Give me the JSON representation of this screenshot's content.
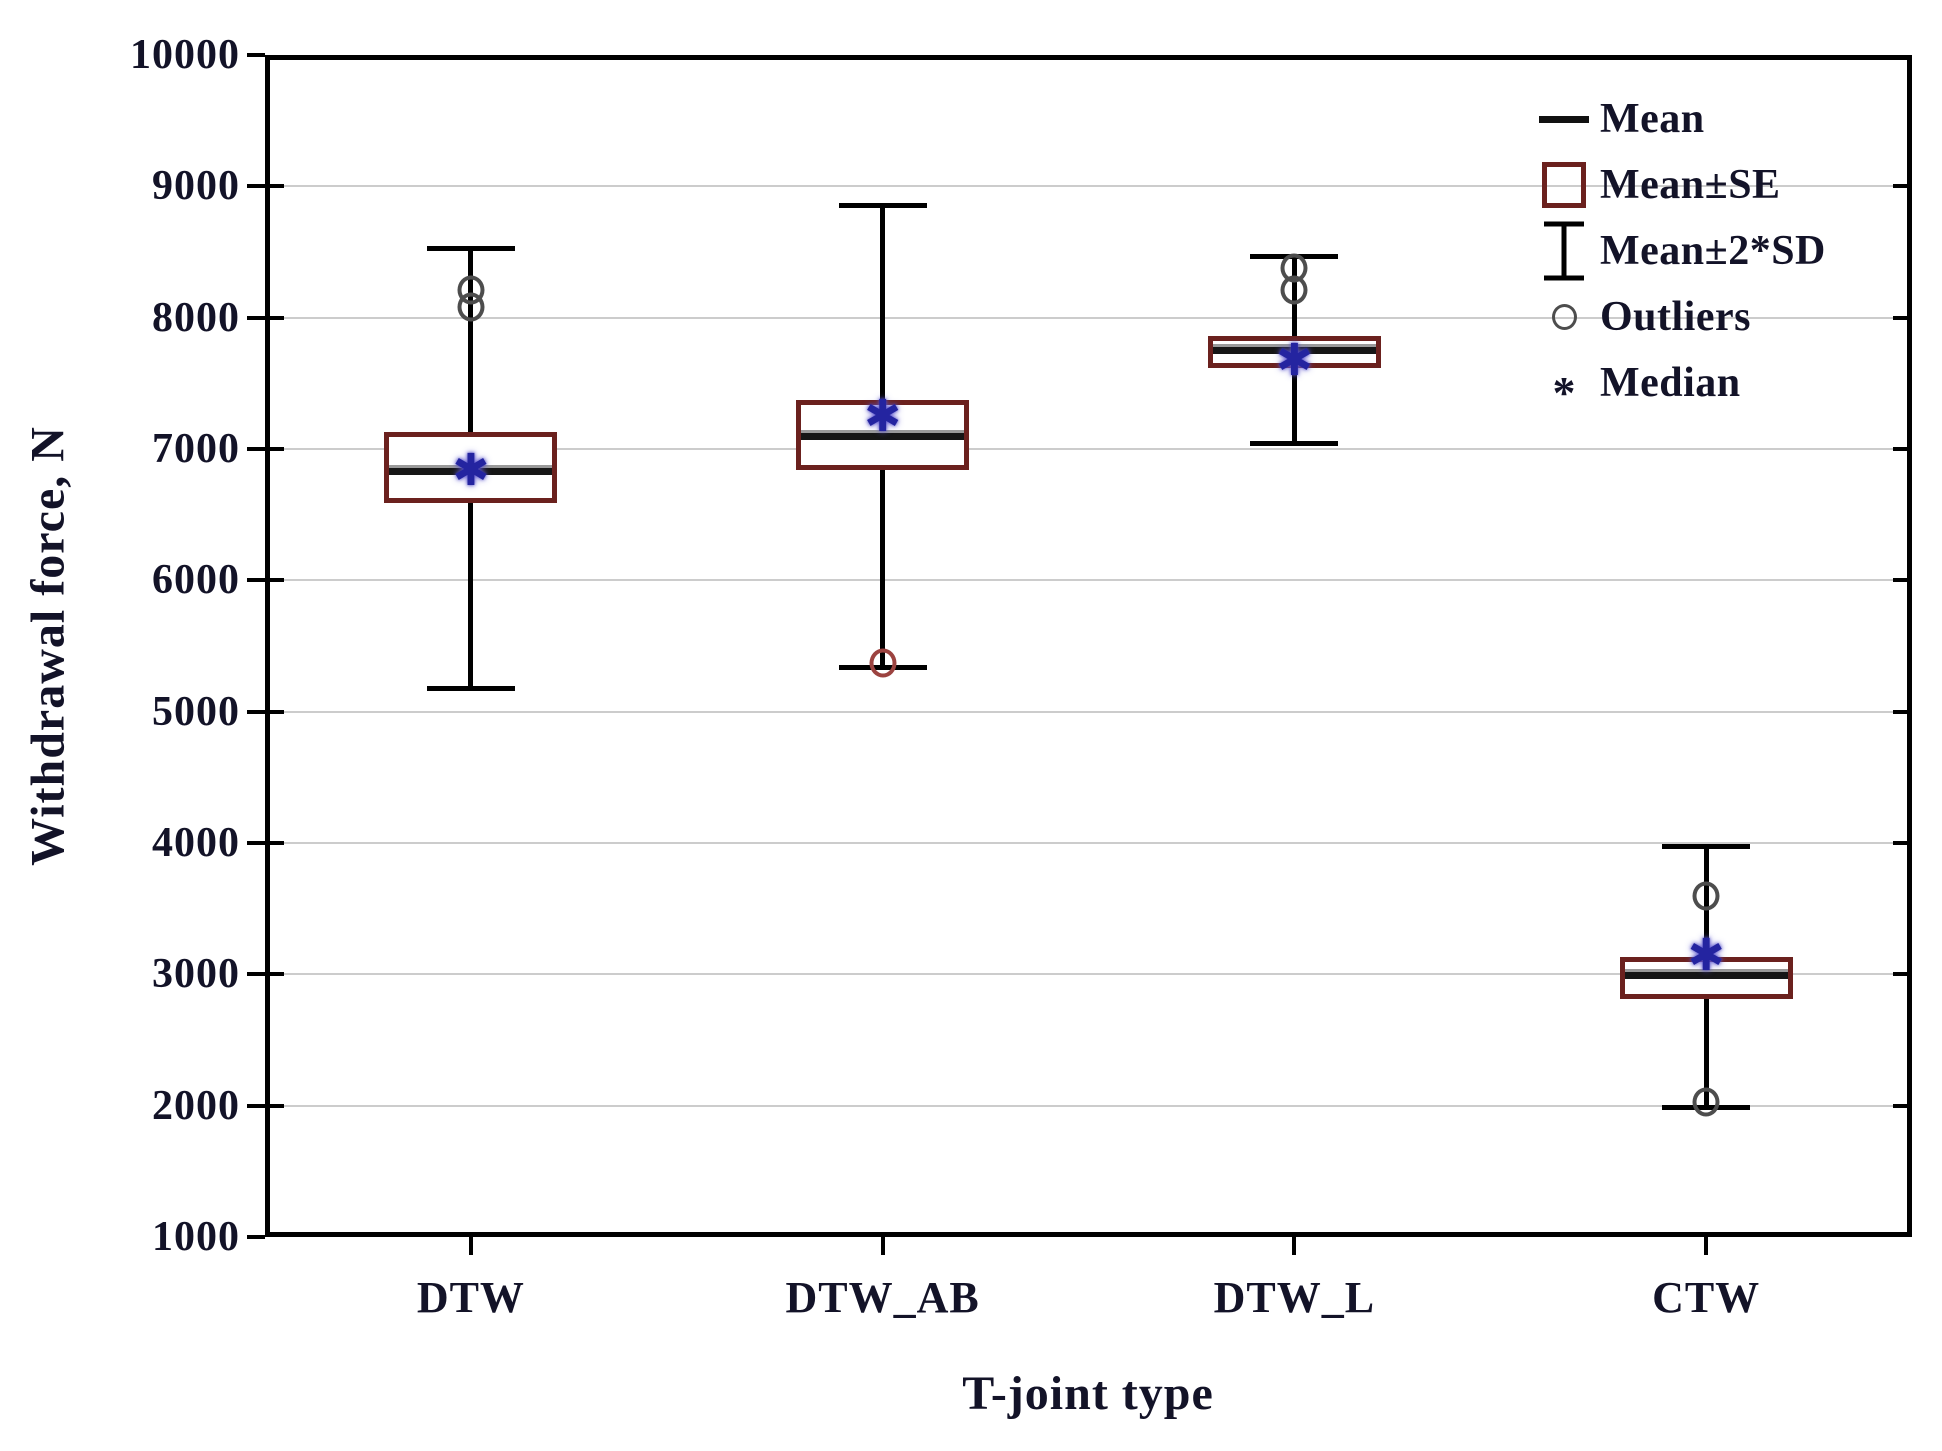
{
  "chart_data": {
    "type": "boxplot",
    "title": "",
    "xlabel": "T-joint type",
    "ylabel": "Withdrawal force, N",
    "ylim": [
      1000,
      10000
    ],
    "ytick_step": 1000,
    "yticks": [
      10000,
      9000,
      8000,
      7000,
      6000,
      5000,
      4000,
      3000,
      2000,
      1000
    ],
    "grid": "horizontal-light-gray",
    "categories": [
      "DTW",
      "DTW_AB",
      "DTW_L",
      "CTW"
    ],
    "series": [
      {
        "category": "DTW",
        "mean": 6840,
        "median": 6830,
        "se_low": 6590,
        "se_high": 7130,
        "sd_low": 5170,
        "sd_high": 8530,
        "outliers": [
          {
            "value": 8210,
            "color": "gray"
          },
          {
            "value": 8080,
            "color": "gray"
          }
        ]
      },
      {
        "category": "DTW_AB",
        "mean": 7110,
        "median": 7240,
        "se_low": 6840,
        "se_high": 7370,
        "sd_low": 5330,
        "sd_high": 8860,
        "outliers": [
          {
            "value": 5370,
            "color": "red"
          }
        ]
      },
      {
        "category": "DTW_L",
        "mean": 7760,
        "median": 7670,
        "se_low": 7620,
        "se_high": 7860,
        "sd_low": 7040,
        "sd_high": 8470,
        "outliers": [
          {
            "value": 8380,
            "color": "gray"
          },
          {
            "value": 8210,
            "color": "gray"
          }
        ]
      },
      {
        "category": "CTW",
        "mean": 3000,
        "median": 3140,
        "se_low": 2810,
        "se_high": 3130,
        "sd_low": 1980,
        "sd_high": 3980,
        "outliers": [
          {
            "value": 3600,
            "color": "gray"
          },
          {
            "value": 2030,
            "color": "gray"
          }
        ]
      }
    ],
    "legend": {
      "position": "top-right",
      "items": [
        {
          "label": "Mean",
          "icon": "mean-line-icon"
        },
        {
          "label": "Mean±SE",
          "icon": "se-box-icon"
        },
        {
          "label": "Mean±2*SD",
          "icon": "sd-whisker-icon"
        },
        {
          "label": "Outliers",
          "icon": "outlier-circle-icon"
        },
        {
          "label": "Median",
          "icon": "median-asterisk-icon"
        }
      ]
    },
    "median_marker_glyph": "✱",
    "colors": {
      "se_box_border": "#6b211e",
      "mean_line": "#161616",
      "mean_line_shadow": "#9a9a9a",
      "median_marker": "#2424a0",
      "outlier_gray": "#4d4d4d",
      "outlier_red": "#9c4340",
      "gridline": "#cccccc",
      "axis_frame": "#000000",
      "text": "#131328"
    }
  }
}
